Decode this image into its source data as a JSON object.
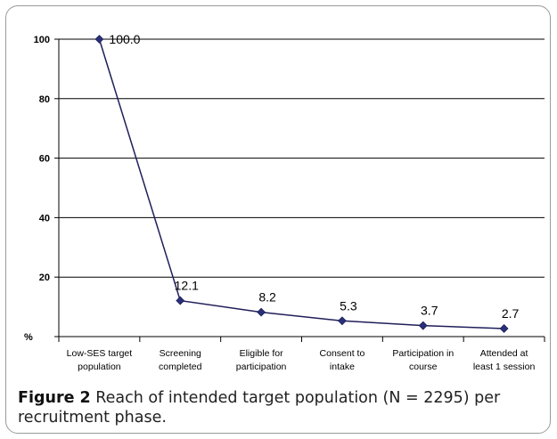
{
  "chart_data": {
    "type": "line",
    "categories": [
      [
        "Low-SES target",
        "population"
      ],
      [
        "Screening",
        "completed"
      ],
      [
        "Eligible for",
        "participation"
      ],
      [
        "Consent to",
        "intake"
      ],
      [
        "Participation in",
        "course"
      ],
      [
        "Attended at",
        "least 1 session"
      ]
    ],
    "values": [
      100.0,
      12.1,
      8.2,
      5.3,
      3.7,
      2.7
    ],
    "data_labels": [
      "100.0",
      "12.1",
      "8.2",
      "5.3",
      "3.7",
      "2.7"
    ],
    "ylabel": "%",
    "ylim": [
      0,
      100
    ],
    "yticks": [
      "0",
      "20",
      "40",
      "60",
      "80",
      "100"
    ],
    "grid": true,
    "colors": {
      "line": "#1f1f5a",
      "marker": "#2a2f7a",
      "grid": "#000000"
    }
  },
  "caption": {
    "figure_label": "Figure 2",
    "text": "Reach of intended target population (N = 2295) per recruitment phase."
  }
}
